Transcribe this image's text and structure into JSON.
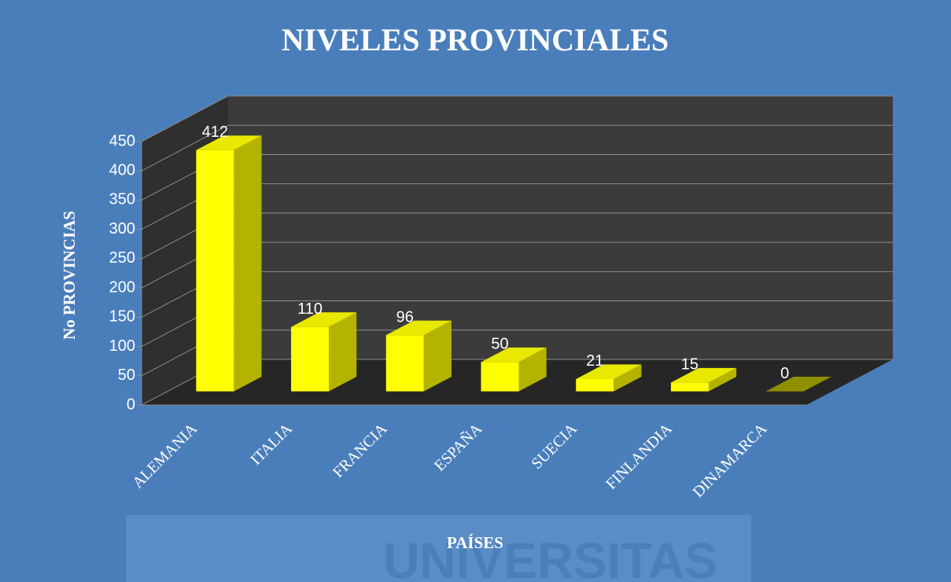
{
  "chart_data": {
    "type": "bar3d",
    "title": "NIVELES PROVINCIALES",
    "y_label": "No PROVINCIAS",
    "x_label": "PAÍSES",
    "watermark": "UNIVERSITAS",
    "categories": [
      "ALEMANIA",
      "ITALIA",
      "FRANCIA",
      "ESPAÑA",
      "SUECIA",
      "FINLANDIA",
      "DINAMARCA"
    ],
    "values": [
      412,
      110,
      96,
      50,
      21,
      15,
      0
    ],
    "color": "#ffff00",
    "ylim": [
      0,
      450
    ],
    "yticks": [
      0,
      50,
      100,
      150,
      200,
      250,
      300,
      350,
      400,
      450
    ],
    "grid": true
  }
}
